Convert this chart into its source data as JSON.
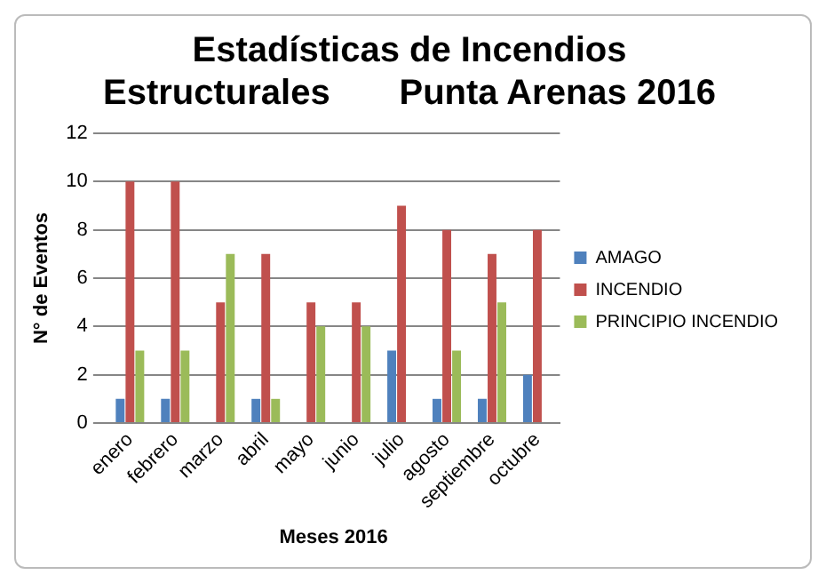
{
  "chart_data": {
    "type": "bar",
    "title": "Estadísticas de Incendios\nEstructurales       Punta Arenas 2016",
    "xlabel": "Meses 2016",
    "ylabel": "N° de Eventos",
    "categories": [
      "enero",
      "febrero",
      "marzo",
      "abril",
      "mayo",
      "junio",
      "julio",
      "agosto",
      "septiembre",
      "octubre"
    ],
    "series": [
      {
        "name": "AMAGO",
        "color": "#4f81bd",
        "values": [
          1,
          1,
          0,
          1,
          0,
          0,
          3,
          1,
          1,
          2
        ]
      },
      {
        "name": "INCENDIO",
        "color": "#c0504d",
        "values": [
          10,
          10,
          5,
          7,
          5,
          5,
          9,
          8,
          7,
          8
        ]
      },
      {
        "name": "PRINCIPIO INCENDIO",
        "color": "#9bbb59",
        "values": [
          3,
          3,
          7,
          1,
          4,
          4,
          0,
          3,
          5,
          0
        ]
      }
    ],
    "ylim": [
      0,
      12
    ],
    "yticks": [
      0,
      2,
      4,
      6,
      8,
      10,
      12
    ],
    "grid": "y",
    "legend": "right"
  }
}
